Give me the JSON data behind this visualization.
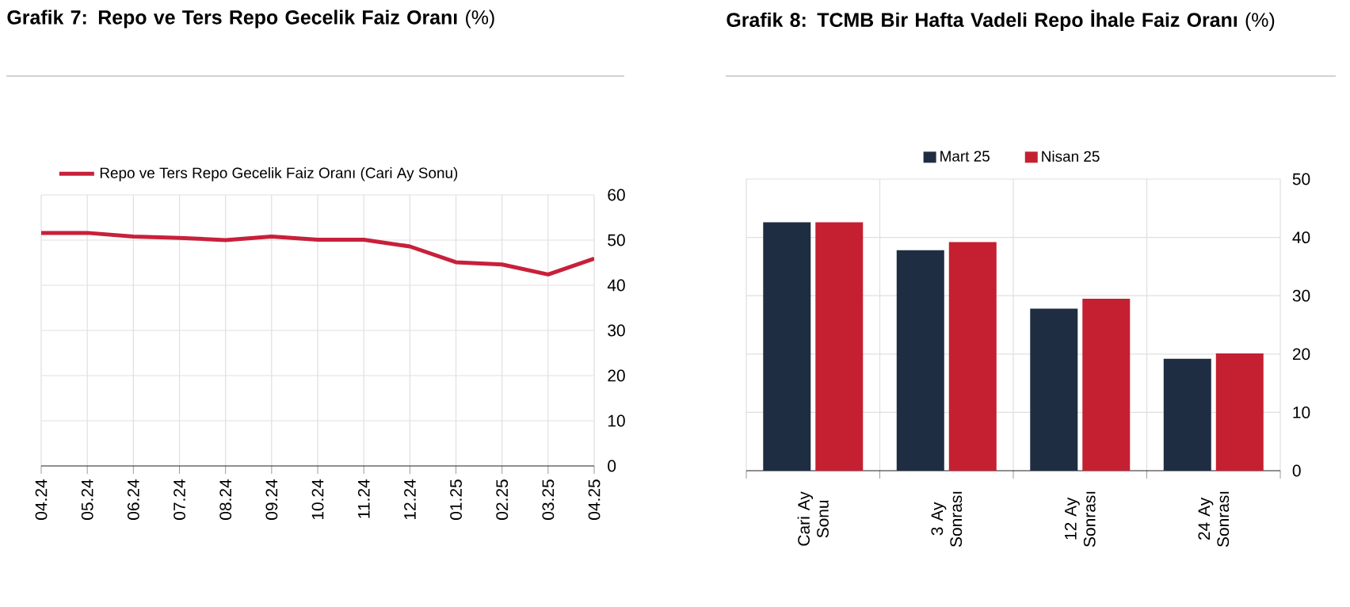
{
  "chart_data": [
    {
      "type": "line",
      "title": "**Grafik 7:  Repo ve Ters Repo Gecelik Faiz Oranı** (%)",
      "categories": [
        "04.24",
        "05.24",
        "06.24",
        "07.24",
        "08.24",
        "09.24",
        "10.24",
        "11.24",
        "12.24",
        "01.25",
        "02.25",
        "03.25",
        "04.25"
      ],
      "series": [
        {
          "name": "Repo ve Ters Repo Gecelik Faiz Oranı (Cari Ay Sonu)",
          "color": "#c8203a",
          "values": [
            51.6,
            51.6,
            50.8,
            50.5,
            50.0,
            50.8,
            50.1,
            50.1,
            48.6,
            45.1,
            44.6,
            42.4,
            45.9
          ]
        }
      ],
      "ylim": [
        0,
        60
      ],
      "yticks": [
        0,
        10,
        20,
        30,
        40,
        50,
        60
      ],
      "grid": true,
      "legend": "top left"
    },
    {
      "type": "bar",
      "title": "**Grafik 8: TCMB Bir Hafta Vadeli Repo İhale Faiz Oranı** (%)",
      "categories": [
        "Cari Ay Sonu",
        "3 Ay Sonrası",
        "12 Ay Sonrası",
        "24 Ay Sonrası"
      ],
      "series": [
        {
          "name": "Mart 25",
          "color": "#1f2d42",
          "values": [
            42.6,
            37.8,
            27.8,
            19.2
          ]
        },
        {
          "name": "Nisan 25",
          "color": "#c42032",
          "values": [
            42.6,
            39.2,
            29.5,
            20.1
          ]
        }
      ],
      "ylim": [
        0,
        50
      ],
      "yticks": [
        0,
        10,
        20,
        30,
        40,
        50
      ],
      "grid": true,
      "legend": "top"
    }
  ]
}
